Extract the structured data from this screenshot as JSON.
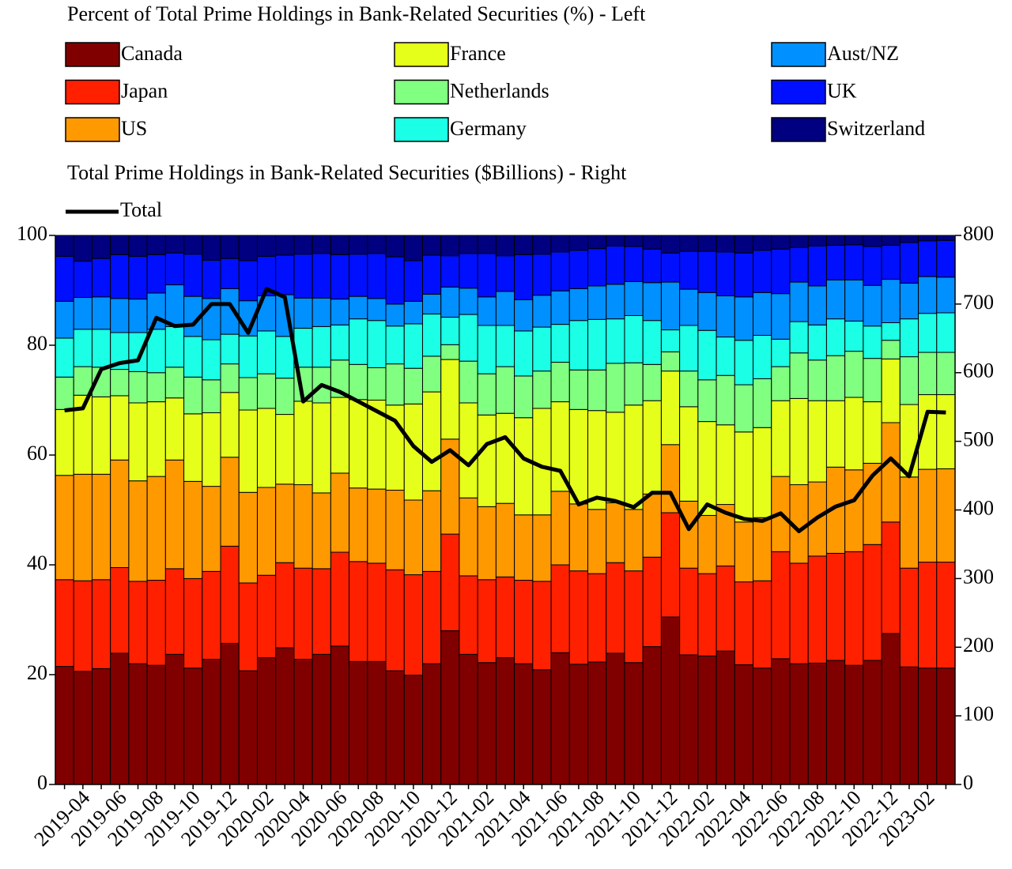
{
  "chart_data": {
    "type": "bar",
    "stacked": true,
    "left_legend_title": "Percent of Total Prime Holdings in Bank-Related Securities (%) - Left",
    "right_legend_title": "Total Prime Holdings in Bank-Related Securities ($Billions) - Right",
    "categories": [
      null,
      "2019-04",
      null,
      "2019-06",
      null,
      "2019-08",
      null,
      "2019-10",
      null,
      "2019-12",
      null,
      "2020-02",
      null,
      "2020-04",
      null,
      "2020-06",
      null,
      "2020-08",
      null,
      "2020-10",
      null,
      "2020-12",
      null,
      "2021-02",
      null,
      "2021-04",
      null,
      "2021-06",
      null,
      "2021-08",
      null,
      "2021-10",
      null,
      "2021-12",
      null,
      "2022-02",
      null,
      "2022-04",
      null,
      "2022-06",
      null,
      "2022-08",
      null,
      "2022-10",
      null,
      "2022-12",
      null,
      "2023-02",
      null
    ],
    "ylim": [
      0,
      100
    ],
    "yticks": [
      0,
      20,
      40,
      60,
      80,
      100
    ],
    "y2lim": [
      0,
      800
    ],
    "y2ticks": [
      0,
      100,
      200,
      300,
      400,
      500,
      600,
      700,
      800
    ],
    "series": [
      {
        "name": "Canada",
        "color": "#800000",
        "values": [
          21.5,
          20.6,
          21.1,
          23.9,
          22.0,
          21.7,
          23.7,
          21.2,
          22.8,
          25.7,
          20.7,
          23.1,
          24.9,
          22.8,
          23.7,
          25.2,
          22.4,
          22.4,
          20.7,
          19.9,
          22.0,
          28.0,
          23.7,
          22.2,
          23.1,
          22.0,
          20.9,
          24.0,
          21.9,
          22.3,
          23.9,
          22.2,
          25.1,
          30.5,
          23.6,
          23.4,
          24.3,
          21.8,
          21.2,
          22.9,
          22.0,
          22.1,
          22.6,
          21.7,
          22.6,
          27.5,
          21.4,
          21.2,
          21.2
        ]
      },
      {
        "name": "Japan",
        "color": "#ff2000",
        "values": [
          15.8,
          16.5,
          16.2,
          15.6,
          15.0,
          15.5,
          15.6,
          16.3,
          16.0,
          17.7,
          16.0,
          15.0,
          15.5,
          16.6,
          15.6,
          17.1,
          18.2,
          17.9,
          18.4,
          18.3,
          16.8,
          17.6,
          14.3,
          15.1,
          14.7,
          15.2,
          16.1,
          16.0,
          17.0,
          16.1,
          16.5,
          16.7,
          16.3,
          19.0,
          15.8,
          15.0,
          15.5,
          15.1,
          15.9,
          19.5,
          18.3,
          19.5,
          19.5,
          20.7,
          21.1,
          20.3,
          18.0,
          19.3,
          19.3
        ]
      },
      {
        "name": "US",
        "color": "#ff9900",
        "values": [
          19.0,
          19.4,
          19.2,
          19.6,
          18.3,
          18.9,
          19.8,
          17.7,
          15.5,
          16.2,
          16.5,
          16.0,
          14.3,
          15.2,
          13.8,
          14.4,
          13.4,
          13.5,
          14.5,
          13.6,
          14.7,
          17.3,
          14.2,
          13.3,
          13.4,
          11.9,
          12.1,
          13.4,
          12.2,
          11.7,
          10.9,
          11.2,
          11.5,
          12.4,
          12.2,
          10.6,
          11.2,
          10.9,
          11.5,
          13.7,
          14.3,
          13.5,
          15.7,
          14.9,
          14.8,
          18.1,
          16.6,
          16.9,
          17.0
        ]
      },
      {
        "name": "France",
        "color": "#e6ff1a",
        "values": [
          12.0,
          14.4,
          14.1,
          11.7,
          14.2,
          13.6,
          11.3,
          12.3,
          13.4,
          11.8,
          15.0,
          14.4,
          12.7,
          15.2,
          16.4,
          13.8,
          16.1,
          16.2,
          15.5,
          17.5,
          18.0,
          14.5,
          17.3,
          16.7,
          16.4,
          17.7,
          19.4,
          16.3,
          17.2,
          18.0,
          16.5,
          19.0,
          17.0,
          13.4,
          17.2,
          17.1,
          14.5,
          16.4,
          16.4,
          13.8,
          15.7,
          14.8,
          12.1,
          13.2,
          11.2,
          11.6,
          13.2,
          13.6,
          13.5
        ]
      },
      {
        "name": "Netherlands",
        "color": "#80ff80",
        "values": [
          5.9,
          5.2,
          5.4,
          4.8,
          5.7,
          5.3,
          5.6,
          6.7,
          6.0,
          5.2,
          5.9,
          6.3,
          6.6,
          6.2,
          6.5,
          6.8,
          6.4,
          5.9,
          7.5,
          6.5,
          6.5,
          2.7,
          7.6,
          7.5,
          8.5,
          7.6,
          6.8,
          7.2,
          7.2,
          7.4,
          8.9,
          7.7,
          6.6,
          3.5,
          6.5,
          7.6,
          9.0,
          8.6,
          8.9,
          6.2,
          8.3,
          7.4,
          8.2,
          8.4,
          7.9,
          3.4,
          8.7,
          7.7,
          7.7
        ]
      },
      {
        "name": "Germany",
        "color": "#1affe6",
        "values": [
          7.1,
          6.8,
          6.9,
          6.7,
          7.1,
          7.9,
          7.4,
          7.4,
          7.3,
          5.4,
          7.6,
          7.8,
          7.6,
          7.1,
          7.4,
          6.4,
          8.3,
          8.6,
          6.9,
          8.1,
          7.7,
          5.0,
          8.5,
          8.8,
          7.5,
          8.2,
          8.0,
          6.9,
          9.0,
          9.2,
          8.1,
          8.6,
          8.0,
          4.0,
          8.3,
          9.0,
          7.0,
          8.1,
          7.9,
          5.0,
          5.7,
          6.4,
          6.7,
          5.5,
          5.9,
          3.2,
          6.9,
          7.1,
          7.2
        ]
      },
      {
        "name": "Aust/NZ",
        "color": "#0090ff",
        "values": [
          6.7,
          5.8,
          5.9,
          6.2,
          6.1,
          6.6,
          7.6,
          7.3,
          7.5,
          8.3,
          6.4,
          6.4,
          7.6,
          5.5,
          5.2,
          4.7,
          4.1,
          4.0,
          4.0,
          4.1,
          3.6,
          5.5,
          4.8,
          5.2,
          6.2,
          5.7,
          5.8,
          6.1,
          5.8,
          6.1,
          6.3,
          6.2,
          6.9,
          8.7,
          6.6,
          6.9,
          7.5,
          7.9,
          7.8,
          8.3,
          7.2,
          7.1,
          7.1,
          7.5,
          7.4,
          7.9,
          6.5,
          6.7,
          6.5
        ]
      },
      {
        "name": "UK",
        "color": "#0010ff",
        "values": [
          8.2,
          6.6,
          7.0,
          8.0,
          7.8,
          7.0,
          5.8,
          7.7,
          7.0,
          5.5,
          7.3,
          7.2,
          7.2,
          8.0,
          8.1,
          8.1,
          7.7,
          8.2,
          8.6,
          7.4,
          7.1,
          5.7,
          6.3,
          7.9,
          6.5,
          8.2,
          7.5,
          7.1,
          7.0,
          6.8,
          7.0,
          6.4,
          6.1,
          5.3,
          6.9,
          7.5,
          8.0,
          8.0,
          7.7,
          8.1,
          6.3,
          7.3,
          6.3,
          6.4,
          7.1,
          6.2,
          7.4,
          6.5,
          6.7
        ]
      },
      {
        "name": "Switzerland",
        "color": "#000080",
        "values": [
          3.8,
          4.7,
          4.2,
          3.5,
          3.8,
          3.5,
          3.2,
          3.4,
          4.5,
          4.2,
          4.6,
          3.8,
          3.6,
          3.4,
          3.3,
          3.5,
          3.4,
          3.3,
          3.9,
          4.6,
          3.6,
          3.7,
          3.3,
          3.3,
          3.7,
          3.5,
          3.4,
          3.0,
          2.7,
          2.4,
          1.9,
          2.0,
          2.5,
          3.2,
          2.9,
          2.9,
          3.0,
          3.2,
          2.7,
          2.5,
          2.2,
          1.9,
          1.8,
          1.7,
          2.0,
          1.8,
          1.3,
          1.0,
          0.9
        ]
      },
      {
        "name": "Total",
        "color": "#000000",
        "type": "line",
        "axis": "y2",
        "values": [
          545,
          548,
          605,
          614,
          618,
          680,
          668,
          670,
          700,
          700,
          658,
          722,
          710,
          558,
          582,
          572,
          558,
          544,
          530,
          493,
          470,
          487,
          465,
          496,
          506,
          475,
          463,
          457,
          408,
          418,
          413,
          404,
          425,
          425,
          372,
          408,
          396,
          387,
          384,
          395,
          369,
          389,
          405,
          414,
          450,
          475,
          449,
          543,
          542
        ]
      }
    ]
  }
}
